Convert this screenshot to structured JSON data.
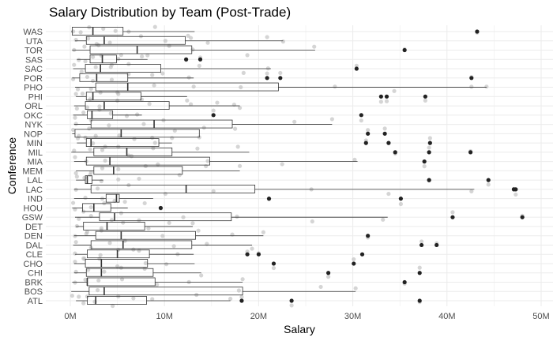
{
  "chart_data": {
    "type": "boxplot",
    "title": "Salary Distribution by Team (Post-Trade)",
    "xlabel": "Salary",
    "ylabel": "Conference",
    "x_ticks": [
      "0M",
      "10M",
      "20M",
      "30M",
      "40M",
      "50M"
    ],
    "x_tick_values": [
      0,
      10,
      20,
      30,
      40,
      50
    ],
    "xlim": [
      -2.5,
      50
    ],
    "orientation": "horizontal",
    "grid": true,
    "legend": "none",
    "colors": {
      "box_fill": "#ffffff",
      "box_line": "#333333",
      "outlier": "#222222",
      "jitter": "#b3b3b3",
      "grid": "#ebebeb"
    },
    "teams": [
      {
        "team": "WAS",
        "min": 0.1,
        "q1": 0.2,
        "median": 2.4,
        "q3": 5.6,
        "max": 13.2,
        "outliers": [
          43.2
        ],
        "jitter": [
          0.3,
          1.1,
          2.0,
          3.5,
          4.8,
          6.2,
          9.0,
          12.5,
          43.2
        ]
      },
      {
        "team": "UTA",
        "min": 0.5,
        "q1": 1.7,
        "median": 3.6,
        "q3": 12.2,
        "max": 22.6,
        "outliers": [],
        "jitter": [
          0.6,
          1.9,
          2.8,
          4.2,
          7.5,
          10.1,
          12.8,
          14.6,
          20.9,
          22.6
        ]
      },
      {
        "team": "TOR",
        "min": 0.2,
        "q1": 2.1,
        "median": 7.1,
        "q3": 12.9,
        "max": 26.0,
        "outliers": [
          35.5
        ],
        "jitter": [
          0.4,
          1.5,
          3.0,
          5.4,
          8.2,
          10.5,
          13.0,
          18.8,
          25.9,
          35.5
        ]
      },
      {
        "team": "SAS",
        "min": 0.7,
        "q1": 2.1,
        "median": 3.4,
        "q3": 4.9,
        "max": 8.2,
        "outliers": [
          12.3,
          13.8
        ],
        "jitter": [
          0.9,
          1.6,
          2.4,
          3.3,
          4.4,
          5.1,
          7.6,
          12.3,
          13.8
        ]
      },
      {
        "team": "SAC",
        "min": 0.3,
        "q1": 1.6,
        "median": 3.2,
        "q3": 9.6,
        "max": 21.3,
        "outliers": [
          30.4
        ],
        "jitter": [
          0.4,
          1.2,
          2.7,
          4.3,
          6.2,
          9.8,
          13.7,
          18.4,
          21.0,
          30.4
        ]
      },
      {
        "team": "POR",
        "min": 0.2,
        "q1": 1.0,
        "median": 2.8,
        "q3": 6.1,
        "max": 13.1,
        "outliers": [
          20.9,
          22.3,
          42.6
        ],
        "jitter": [
          0.3,
          1.8,
          2.4,
          4.4,
          6.2,
          8.7,
          12.6,
          20.9,
          22.3,
          42.6
        ]
      },
      {
        "team": "PHO",
        "min": 0.5,
        "q1": 2.7,
        "median": 6.1,
        "q3": 22.1,
        "max": 44.2,
        "outliers": [],
        "jitter": [
          0.8,
          2.2,
          5.0,
          8.9,
          13.1,
          18.1,
          28.1,
          34.4,
          42.6,
          44.2
        ]
      },
      {
        "team": "PHI",
        "min": 0.6,
        "q1": 1.7,
        "median": 2.4,
        "q3": 7.5,
        "max": 12.4,
        "outliers": [
          33.0,
          33.6,
          37.7
        ],
        "jitter": [
          0.6,
          1.3,
          2.1,
          3.2,
          5.1,
          7.6,
          12.4,
          33.0,
          33.6,
          37.7
        ]
      },
      {
        "team": "ORL",
        "min": 0.4,
        "q1": 1.6,
        "median": 3.6,
        "q3": 10.5,
        "max": 18.0,
        "outliers": [],
        "jitter": [
          0.7,
          1.8,
          3.1,
          5.0,
          8.4,
          12.8,
          15.6,
          17.4,
          18.0
        ]
      },
      {
        "team": "OKC",
        "min": 0.3,
        "q1": 1.8,
        "median": 2.3,
        "q3": 4.5,
        "max": 7.6,
        "outliers": [
          15.2,
          30.9
        ],
        "jitter": [
          0.5,
          1.4,
          2.2,
          3.1,
          4.3,
          6.0,
          7.1,
          15.2,
          30.9
        ]
      },
      {
        "team": "NYK",
        "min": 0.4,
        "q1": 2.2,
        "median": 8.9,
        "q3": 17.2,
        "max": 27.8,
        "outliers": [],
        "jitter": [
          0.6,
          2.0,
          4.1,
          7.8,
          9.9,
          14.2,
          17.5,
          23.8,
          27.8
        ]
      },
      {
        "team": "NOP",
        "min": 0.2,
        "q1": 0.5,
        "median": 5.4,
        "q3": 13.7,
        "max": 13.7,
        "outliers": [
          31.6,
          33.4
        ],
        "jitter": [
          0.3,
          0.9,
          2.7,
          5.2,
          8.7,
          11.1,
          13.7,
          31.6,
          33.4
        ]
      },
      {
        "team": "MIN",
        "min": 0.7,
        "q1": 1.7,
        "median": 2.2,
        "q3": 9.4,
        "max": 10.8,
        "outliers": [
          31.4,
          33.8,
          38.2
        ],
        "jitter": [
          0.8,
          1.6,
          2.4,
          3.7,
          5.1,
          6.8,
          9.0,
          10.8,
          31.4,
          33.8,
          38.2
        ]
      },
      {
        "team": "MIL",
        "min": 0.1,
        "q1": 2.5,
        "median": 6.0,
        "q3": 10.8,
        "max": 19.0,
        "outliers": [
          34.5,
          38.1,
          42.5
        ],
        "jitter": [
          0.4,
          2.1,
          3.4,
          6.2,
          8.8,
          13.5,
          17.8,
          34.5,
          38.1,
          42.5
        ]
      },
      {
        "team": "MIA",
        "min": 0.4,
        "q1": 1.7,
        "median": 4.2,
        "q3": 14.8,
        "max": 30.5,
        "outliers": [
          37.6
        ],
        "jitter": [
          0.5,
          1.7,
          3.7,
          6.5,
          9.3,
          14.6,
          22.5,
          30.2,
          37.6
        ]
      },
      {
        "team": "MEM",
        "min": 0.6,
        "q1": 2.5,
        "median": 4.6,
        "q3": 11.9,
        "max": 18.0,
        "outliers": [],
        "jitter": [
          0.6,
          2.2,
          3.4,
          5.1,
          8.0,
          11.6,
          14.4,
          18.0
        ]
      },
      {
        "team": "LAL",
        "min": 0.6,
        "q1": 1.6,
        "median": 1.8,
        "q3": 2.3,
        "max": 3.5,
        "outliers": [
          38.1,
          44.4
        ],
        "jitter": [
          0.7,
          1.5,
          2.1,
          3.3,
          5.1,
          7.3,
          38.1,
          44.4
        ]
      },
      {
        "team": "LAC",
        "min": 0.4,
        "q1": 2.2,
        "median": 12.3,
        "q3": 19.6,
        "max": 42.9,
        "outliers": [
          47.1,
          47.3
        ],
        "jitter": [
          0.6,
          2.9,
          6.2,
          10.1,
          15.2,
          25.6,
          33.8,
          42.6,
          47.1,
          47.3
        ]
      },
      {
        "team": "IND",
        "min": 0.4,
        "q1": 3.8,
        "median": 4.9,
        "q3": 5.2,
        "max": 8.8,
        "outliers": [
          21.1,
          35.1
        ],
        "jitter": [
          0.3,
          1.6,
          3.4,
          4.7,
          5.8,
          7.9,
          21.1,
          35.1
        ]
      },
      {
        "team": "HOU",
        "min": 0.2,
        "q1": 1.3,
        "median": 2.5,
        "q3": 4.3,
        "max": 6.1,
        "outliers": [
          9.6
        ],
        "jitter": [
          0.5,
          1.4,
          2.2,
          3.6,
          5.4,
          9.6
        ]
      },
      {
        "team": "GSW",
        "min": 0.5,
        "q1": 3.1,
        "median": 4.7,
        "q3": 17.1,
        "max": 33.7,
        "outliers": [
          40.6,
          48.0
        ],
        "jitter": [
          0.9,
          2.2,
          4.4,
          7.3,
          12.0,
          17.7,
          25.7,
          33.2,
          40.6,
          48.0
        ]
      },
      {
        "team": "DET",
        "min": 0.6,
        "q1": 1.4,
        "median": 3.9,
        "q3": 7.9,
        "max": 13.0,
        "outliers": [],
        "jitter": [
          0.7,
          1.8,
          3.3,
          5.6,
          8.3,
          10.5,
          13.0
        ]
      },
      {
        "team": "DEN",
        "min": 0.4,
        "q1": 2.7,
        "median": 5.4,
        "q3": 13.3,
        "max": 20.5,
        "outliers": [
          31.6
        ],
        "jitter": [
          0.5,
          1.7,
          3.3,
          5.8,
          9.8,
          13.6,
          17.2,
          20.5,
          31.6
        ]
      },
      {
        "team": "DAL",
        "min": 0.3,
        "q1": 2.2,
        "median": 5.6,
        "q3": 12.9,
        "max": 19.3,
        "outliers": [
          37.3,
          38.9
        ],
        "jitter": [
          0.6,
          2.2,
          4.2,
          6.7,
          11.0,
          14.5,
          19.3,
          37.3,
          38.9
        ]
      },
      {
        "team": "CLE",
        "min": 0.5,
        "q1": 1.8,
        "median": 5.0,
        "q3": 8.4,
        "max": 13.1,
        "outliers": [
          18.8,
          20.0,
          31.0
        ],
        "jitter": [
          0.5,
          1.5,
          3.2,
          5.1,
          7.3,
          11.4,
          18.8,
          20.0,
          31.0
        ]
      },
      {
        "team": "CHO",
        "min": 0.4,
        "q1": 1.6,
        "median": 3.3,
        "q3": 8.2,
        "max": 13.2,
        "outliers": [
          21.6,
          30.1
        ],
        "jitter": [
          0.5,
          1.4,
          3.1,
          5.0,
          8.0,
          10.2,
          21.6,
          30.1
        ]
      },
      {
        "team": "CHI",
        "min": 0.4,
        "q1": 1.7,
        "median": 3.3,
        "q3": 8.8,
        "max": 13.9,
        "outliers": [
          27.4,
          37.1
        ],
        "jitter": [
          0.6,
          1.9,
          3.6,
          5.4,
          7.9,
          13.9,
          27.4,
          37.1
        ]
      },
      {
        "team": "BRK",
        "min": 0.2,
        "q1": 1.8,
        "median": 1.8,
        "q3": 9.0,
        "max": 18.3,
        "outliers": [
          35.5
        ],
        "jitter": [
          0.5,
          1.6,
          3.0,
          5.5,
          9.2,
          12.6,
          18.3,
          35.5
        ]
      },
      {
        "team": "BOS",
        "min": 0.1,
        "q1": 2.0,
        "median": 3.6,
        "q3": 18.3,
        "max": 30.3,
        "outliers": [],
        "jitter": [
          0.2,
          1.8,
          2.9,
          5.1,
          13.4,
          17.9,
          26.6,
          30.3
        ]
      },
      {
        "team": "ATL",
        "min": 0.6,
        "q1": 1.8,
        "median": 2.7,
        "q3": 8.1,
        "max": 17.0,
        "outliers": [
          18.2,
          23.5,
          37.1
        ],
        "jitter": [
          0.9,
          1.4,
          2.6,
          4.5,
          6.7,
          8.7,
          17.0,
          18.2,
          23.5,
          37.1
        ]
      }
    ]
  }
}
